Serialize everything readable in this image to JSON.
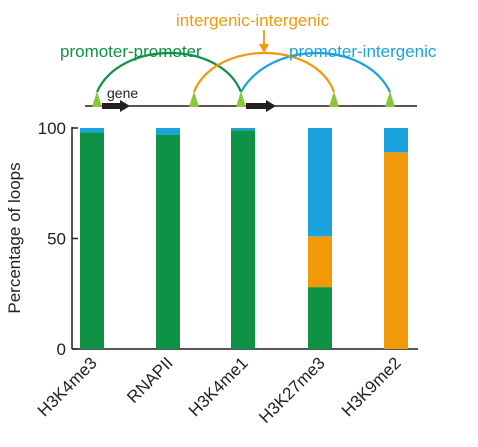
{
  "chart_data": {
    "type": "bar",
    "stacked": true,
    "categories": [
      "H3K4me3",
      "RNAPII",
      "H3K4me1",
      "H3K27me3",
      "H3K9me2"
    ],
    "series": [
      {
        "name": "promoter-promoter",
        "color": "#0e9245",
        "values": [
          98,
          97,
          99,
          28,
          0
        ]
      },
      {
        "name": "intergenic-intergenic",
        "color": "#f2990a",
        "values": [
          0,
          0,
          0,
          23,
          89
        ]
      },
      {
        "name": "promoter-intergenic",
        "color": "#1ba3de",
        "values": [
          2,
          3,
          1,
          49,
          11
        ]
      }
    ],
    "ylabel": "Percentage of loops",
    "ylim": [
      0,
      100
    ],
    "yticks": [
      0,
      50,
      100
    ],
    "grid": false,
    "legend": "top, drawn as a loop schematic over a gene track",
    "schematic": {
      "gene_label": "gene",
      "pp_label": "promoter-promoter",
      "ii_label": "intergenic-intergenic",
      "pi_label": "promoter-intergenic"
    }
  }
}
